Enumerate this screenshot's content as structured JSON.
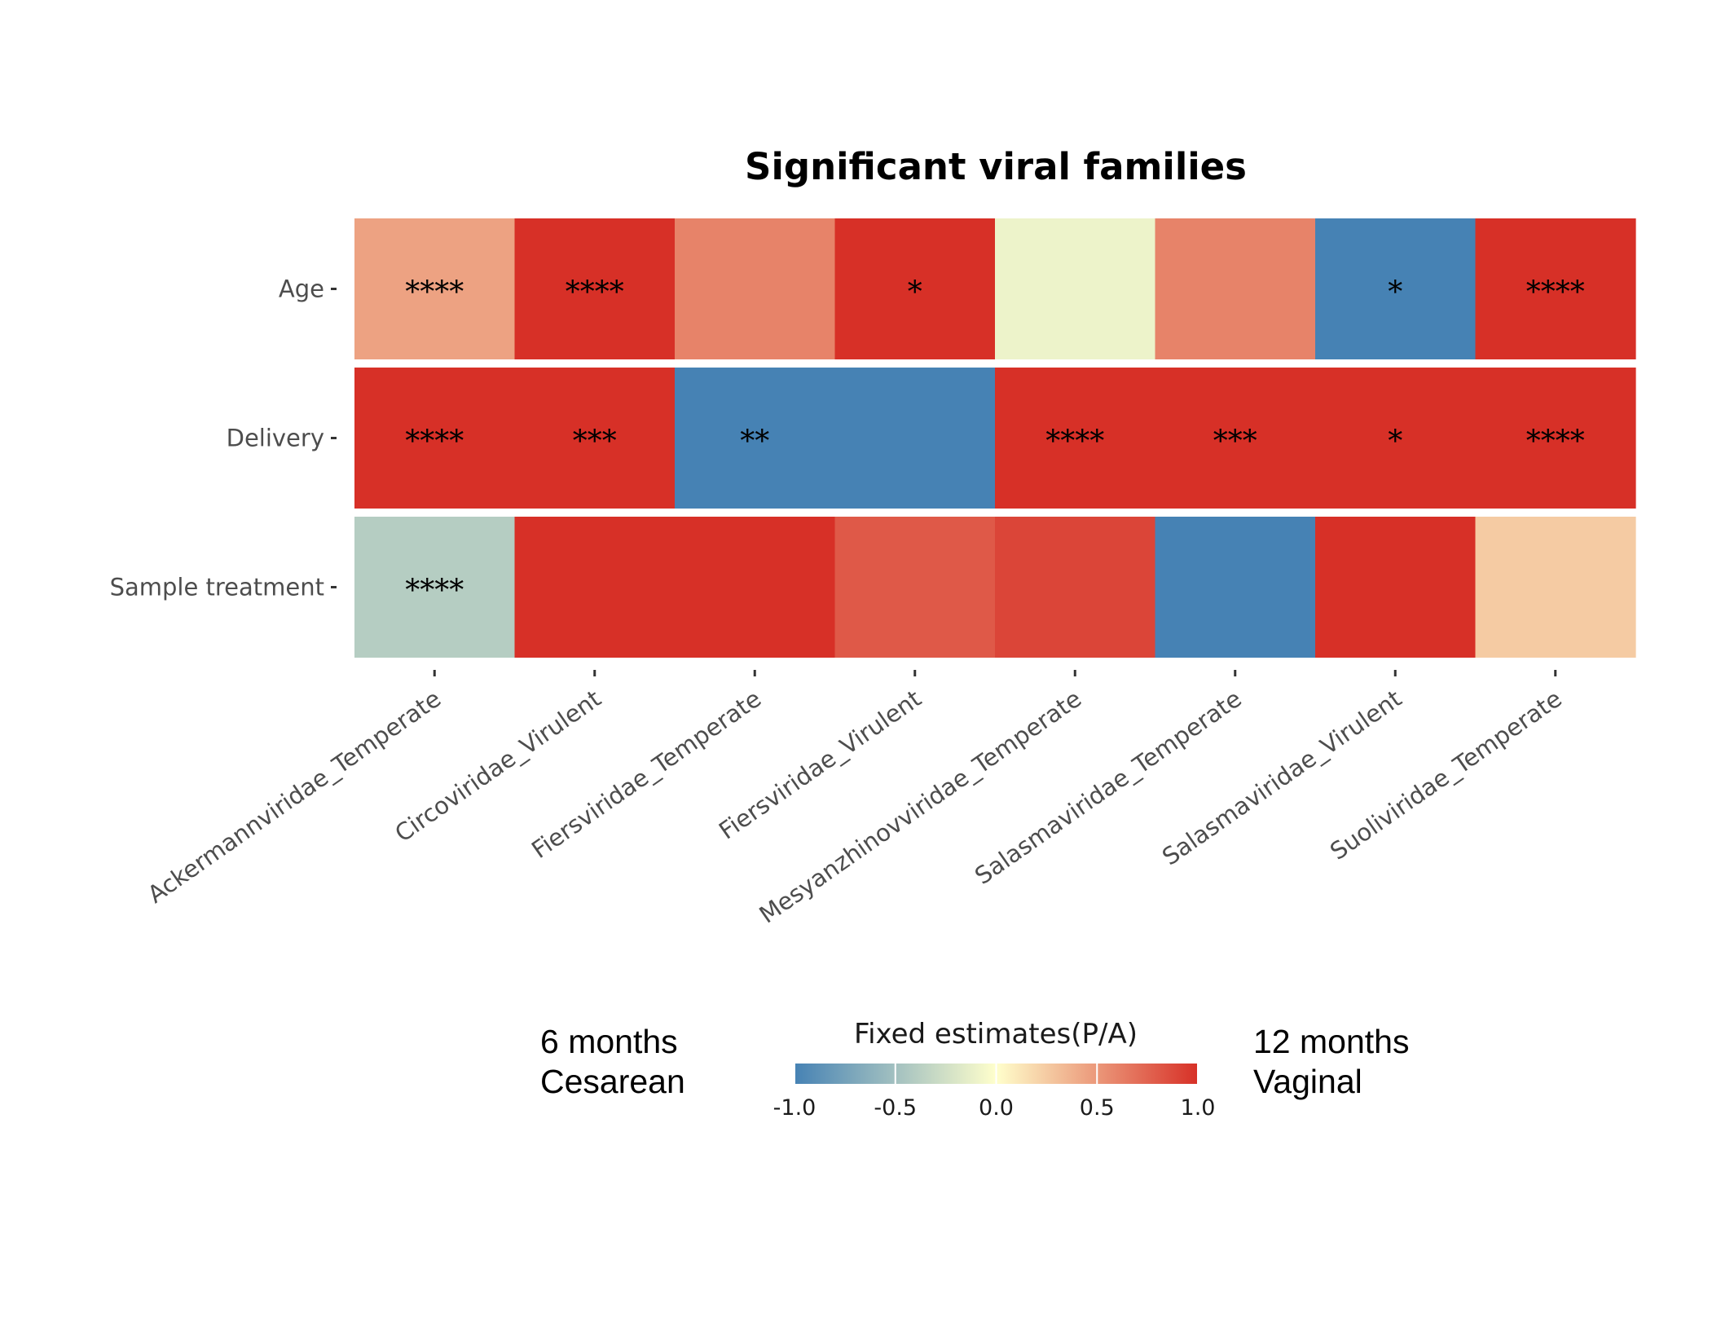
{
  "chart_data": {
    "type": "heatmap",
    "title": "Significant viral families",
    "x_categories": [
      "Ackermannviridae_Temperate",
      "Circoviridae_Virulent",
      "Fiersviridae_Temperate",
      "Fiersviridae_Virulent",
      "Mesyanzhinovviridae_Temperate",
      "Salasmaviridae_Temperate",
      "Salasmaviridae_Virulent",
      "Suoliviridae_Temperate"
    ],
    "y_categories": [
      "Age",
      "Delivery",
      "Sample treatment"
    ],
    "values": [
      [
        0.45,
        1.0,
        0.6,
        1.0,
        -0.1,
        0.6,
        -1.0,
        1.0
      ],
      [
        1.0,
        1.0,
        -1.0,
        -1.0,
        1.0,
        1.0,
        1.0,
        1.0
      ],
      [
        -0.4,
        1.0,
        1.0,
        0.8,
        0.9,
        -1.0,
        1.0,
        0.25
      ]
    ],
    "significance": [
      [
        "****",
        "****",
        "",
        "*",
        "",
        "",
        "*",
        "****"
      ],
      [
        "****",
        "***",
        "**",
        "",
        "****",
        "***",
        "*",
        "****"
      ],
      [
        "****",
        "",
        "",
        "",
        "",
        "",
        "",
        ""
      ]
    ],
    "legend": {
      "title": "Fixed estimates(P/A)",
      "ticks": [
        "-1.0",
        "-0.5",
        "0.0",
        "0.5",
        "1.0"
      ],
      "tick_values": [
        -1.0,
        -0.5,
        0.0,
        0.5,
        1.0
      ],
      "range": [
        -1.0,
        1.0
      ],
      "colors": [
        "#4682b4",
        "#ffffcc",
        "#d73027"
      ],
      "low_label_lines": [
        "6 months",
        "Cesarean"
      ],
      "high_label_lines": [
        "12 months",
        "Vaginal"
      ],
      "placement": "bottom"
    },
    "grid": false
  }
}
